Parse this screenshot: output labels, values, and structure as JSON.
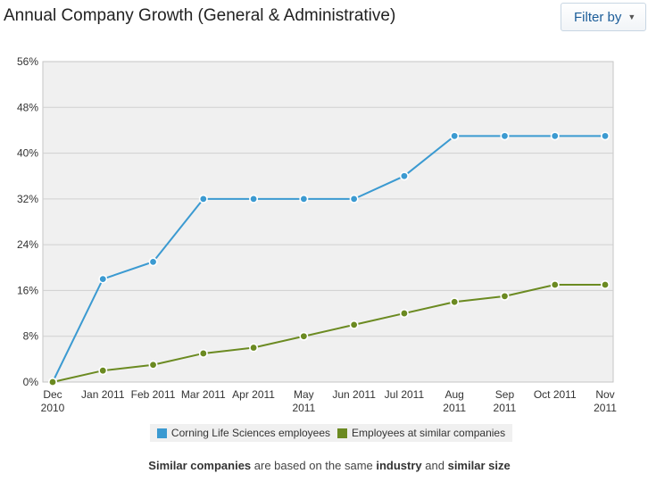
{
  "header": {
    "title": "Annual Company Growth (General & Administrative)",
    "filter_label": "Filter by",
    "filter_icon": "chevron-down-icon"
  },
  "chart_data": {
    "type": "line",
    "title": "Annual Company Growth (General & Administrative)",
    "categories": [
      [
        "Dec",
        "2010"
      ],
      [
        "Jan 2011"
      ],
      [
        "Feb 2011"
      ],
      [
        "Mar 2011"
      ],
      [
        "Apr 2011"
      ],
      [
        "May",
        "2011"
      ],
      [
        "Jun 2011"
      ],
      [
        "Jul 2011"
      ],
      [
        "Aug",
        "2011"
      ],
      [
        "Sep",
        "2011"
      ],
      [
        "Oct 2011"
      ],
      [
        "Nov",
        "2011"
      ]
    ],
    "y_ticks": [
      "0%",
      "8%",
      "16%",
      "24%",
      "32%",
      "40%",
      "48%",
      "56%"
    ],
    "ylim": [
      0,
      56
    ],
    "grid": true,
    "legend_position": "bottom",
    "series": [
      {
        "name": "Corning Life Sciences employees",
        "color": "#3b9ad1",
        "values": [
          0,
          18,
          21,
          32,
          32,
          32,
          32,
          36,
          43,
          43,
          43,
          43
        ]
      },
      {
        "name": "Employees at similar companies",
        "color": "#6b8a21",
        "values": [
          0,
          2,
          3,
          5,
          6,
          8,
          10,
          12,
          14,
          15,
          17,
          17
        ]
      }
    ]
  },
  "footnote": {
    "b1": "Similar companies",
    "t1": " are based on the same ",
    "b2": "industry",
    "t2": " and ",
    "b3": "similar size"
  }
}
